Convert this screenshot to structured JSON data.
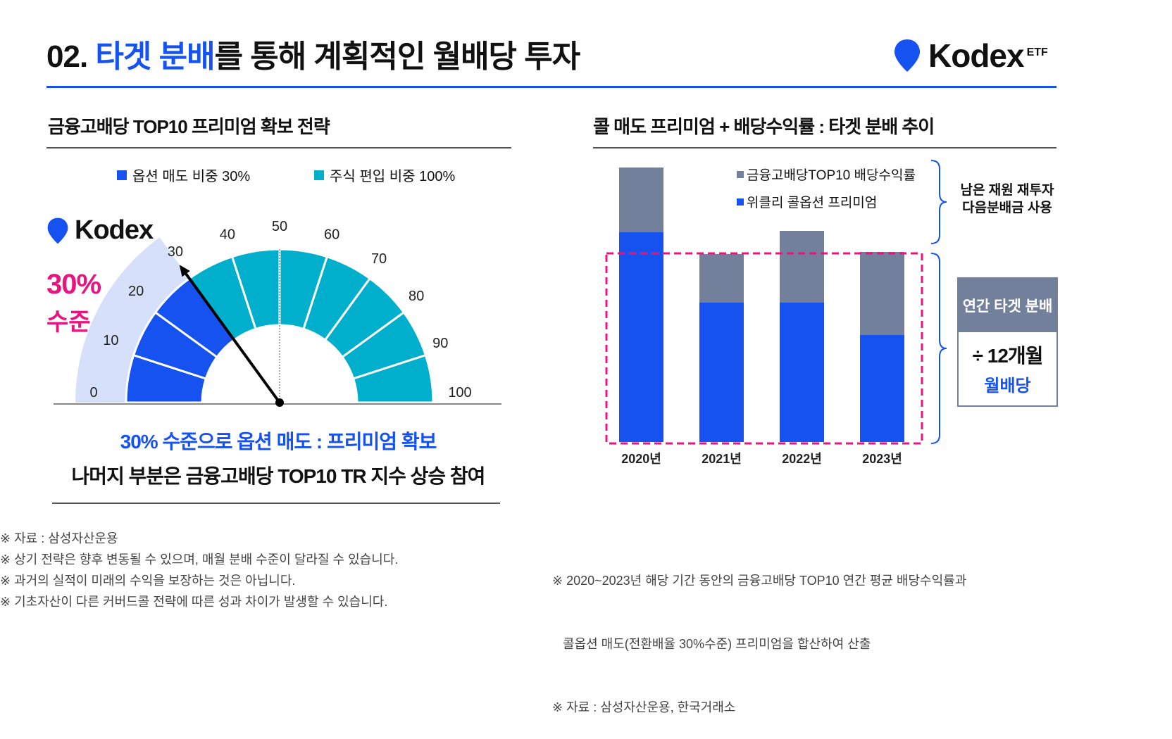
{
  "header": {
    "num": "02.",
    "highlight": "타겟 분배",
    "rest": "를 통해 계획적인 월배당 투자",
    "logo": "Kodex",
    "logo_sub": "ETF"
  },
  "colors": {
    "accent": "#1652f0",
    "teal": "#00afcc",
    "light": "#d6e0fb",
    "gray": "#72809c",
    "pink": "#e8147f"
  },
  "left": {
    "title": "금융고배당 TOP10 프리미엄 확보 전략",
    "legend": [
      {
        "label": "옵션 매도 비중 30%",
        "color": "#1652f0"
      },
      {
        "label": "주식 편입 비중 100%",
        "color": "#00afcc"
      }
    ],
    "logo": "Kodex",
    "level_pct": "30%",
    "level_word": "수준",
    "gauge": {
      "ticks": [
        "0",
        "10",
        "20",
        "30",
        "40",
        "50",
        "60",
        "70",
        "80",
        "90",
        "100"
      ],
      "needle_value": 30,
      "option_share": 30
    },
    "caption1": "30% 수준으로 옵션 매도 : 프리미엄 확보",
    "caption2": "나머지 부분은 금융고배당 TOP10 TR 지수 상승 참여"
  },
  "chart_data": {
    "type": "bar",
    "stacked": true,
    "title": "콜 매도 프리미엄 + 배당수익률 : 타겟 분배 추이",
    "categories": [
      "2020년",
      "2021년",
      "2022년",
      "2023년"
    ],
    "series": [
      {
        "name": "위클리 콜옵션 프리미엄",
        "color": "#1652f0",
        "values": [
          29.8,
          19.8,
          19.8,
          15.2
        ]
      },
      {
        "name": "금융고배당TOP10 배당수익률",
        "color": "#72809c",
        "values": [
          9.2,
          6.9,
          10.2,
          11.8
        ]
      }
    ],
    "target_line": 26.8,
    "ylim": [
      0,
      40
    ]
  },
  "right": {
    "brace_top": [
      "남은 재원 재투자",
      "다음분배금 사용"
    ],
    "box_header": "연간 타겟 분배",
    "box_line1": "÷ 12개월",
    "box_line2": "월배당"
  },
  "footnotes_left": [
    "※ 자료 : 삼성자산운용",
    "※ 상기 전략은 향후 변동될 수 있으며, 매월 분배 수준이 달라질 수 있습니다.",
    "※ 과거의 실적이 미래의 수익을 보장하는 것은 아닙니다.",
    "※ 기초자산이 다른 커버드콜 전략에 따른 성과 차이가 발생할 수 있습니다."
  ],
  "footnotes_right": [
    "※ 2020~2023년 해당 기간 동안의 금융고배당 TOP10 연간 평균 배당수익률과",
    "   콜옵션 매도(전환배율 30%수준) 프리미엄을 합산하여 산출",
    "※ 자료 : 삼성자산운용, 한국거래소"
  ]
}
